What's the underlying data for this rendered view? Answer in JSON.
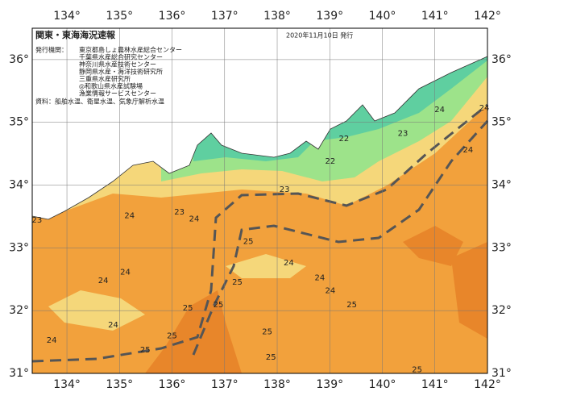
{
  "header": {
    "title": "関東・東海海況速報",
    "date": "2020年11月10日 発行",
    "issuer_label": "発行機関：",
    "issuers": [
      "東京都島しょ農林水産総合センター",
      "千葉県水産総合研究センター",
      "神奈川県水産技術センター",
      "静岡県水産・海洋技術研究所",
      "三重県水産研究所",
      "◎和歌山県水産試験場",
      "漁業情報サービスセンター"
    ],
    "source": "資料：船舶水温、衛星水温、気象庁解析水温"
  },
  "map": {
    "xlim": [
      133.34,
      142
    ],
    "ylim": [
      31,
      36.5
    ],
    "xticks": [
      {
        "value": 134,
        "label": "134°"
      },
      {
        "value": 135,
        "label": "135°"
      },
      {
        "value": 136,
        "label": "136°"
      },
      {
        "value": 137,
        "label": "137°"
      },
      {
        "value": 138,
        "label": "138°"
      },
      {
        "value": 139,
        "label": "139°"
      },
      {
        "value": 140,
        "label": "140°"
      },
      {
        "value": 141,
        "label": "141°"
      },
      {
        "value": 142,
        "label": "142°"
      }
    ],
    "yticks": [
      {
        "value": 31,
        "label": "31°"
      },
      {
        "value": 32,
        "label": "32°"
      },
      {
        "value": 33,
        "label": "33°"
      },
      {
        "value": 34,
        "label": "34°"
      },
      {
        "value": 35,
        "label": "35°"
      },
      {
        "value": 36,
        "label": "36°"
      }
    ],
    "isotherm_labels": [
      {
        "lon": 139.27,
        "lat": 34.74,
        "value": 22
      },
      {
        "lon": 139.01,
        "lat": 34.38,
        "value": 22
      },
      {
        "lon": 140.39,
        "lat": 34.82,
        "value": 23
      },
      {
        "lon": 141.09,
        "lat": 35.2,
        "value": 24
      },
      {
        "lon": 141.63,
        "lat": 34.56,
        "value": 24
      },
      {
        "lon": 141.94,
        "lat": 35.23,
        "value": 24
      },
      {
        "lon": 138.14,
        "lat": 33.93,
        "value": 23
      },
      {
        "lon": 135.19,
        "lat": 33.51,
        "value": 24
      },
      {
        "lon": 136.14,
        "lat": 33.57,
        "value": 23
      },
      {
        "lon": 136.42,
        "lat": 33.46,
        "value": 24
      },
      {
        "lon": 137.45,
        "lat": 33.1,
        "value": 25
      },
      {
        "lon": 135.11,
        "lat": 32.61,
        "value": 24
      },
      {
        "lon": 134.69,
        "lat": 32.48,
        "value": 24
      },
      {
        "lon": 137.24,
        "lat": 32.45,
        "value": 25
      },
      {
        "lon": 138.22,
        "lat": 32.76,
        "value": 24
      },
      {
        "lon": 138.81,
        "lat": 32.52,
        "value": 24
      },
      {
        "lon": 139.01,
        "lat": 32.32,
        "value": 24
      },
      {
        "lon": 136.3,
        "lat": 32.04,
        "value": 25
      },
      {
        "lon": 136.88,
        "lat": 32.09,
        "value": 25
      },
      {
        "lon": 134.88,
        "lat": 31.77,
        "value": 24
      },
      {
        "lon": 136.0,
        "lat": 31.6,
        "value": 25
      },
      {
        "lon": 135.49,
        "lat": 31.37,
        "value": 25
      },
      {
        "lon": 137.81,
        "lat": 31.66,
        "value": 25
      },
      {
        "lon": 137.88,
        "lat": 31.26,
        "value": 25
      },
      {
        "lon": 140.66,
        "lat": 31.06,
        "value": 25
      },
      {
        "lon": 133.71,
        "lat": 31.53,
        "value": 24
      },
      {
        "lon": 133.43,
        "lat": 33.44,
        "value": 23
      },
      {
        "lon": 139.42,
        "lat": 32.09,
        "value": 25
      }
    ]
  }
}
